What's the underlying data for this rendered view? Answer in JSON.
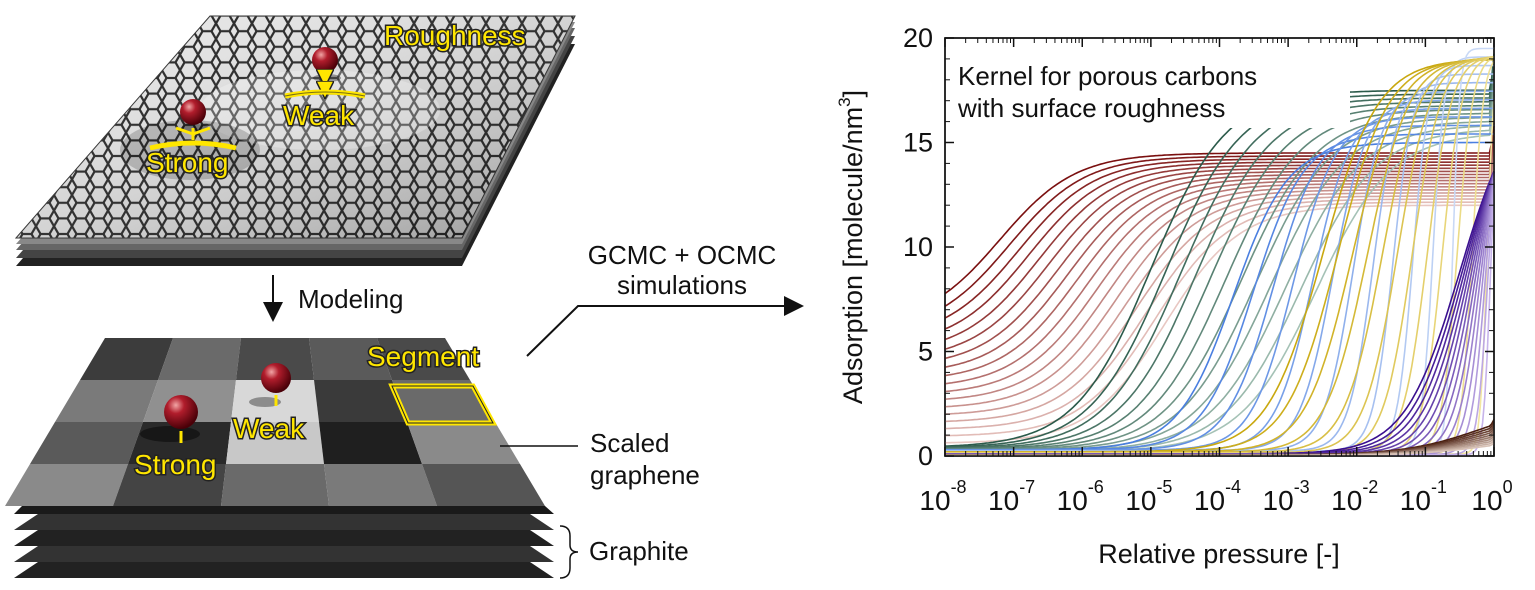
{
  "left_diagram": {
    "top_labels": {
      "roughness": "Roughness",
      "weak": "Weak",
      "strong": "Strong"
    },
    "arrow_label": "Modeling",
    "bottom_labels": {
      "segment": "Segment",
      "weak": "Weak",
      "strong": "Strong",
      "scaled_graphene_line1": "Scaled",
      "scaled_graphene_line2": "graphene",
      "graphite": "Graphite"
    },
    "middle_label_line1": "GCMC + OCMC",
    "middle_label_line2": "simulations"
  },
  "colors": {
    "highlight_yellow": "#ffe600",
    "red_family": "#7a1010",
    "green_family": "#2e5e4e",
    "blue_family": "#5b8ee8",
    "yellow_family": "#d4b21a",
    "purple_family": "#4b1aa6",
    "brown_family": "#5a2a1a"
  },
  "chart_data": {
    "type": "line",
    "annotation_line1": "Kernel for porous carbons",
    "annotation_line2": "with surface roughness",
    "xlabel": "Relative pressure [-]",
    "ylabel": "Adsorption [molecule/nm",
    "ylabel_sup": "3",
    "ylabel_close": "]",
    "x_scale": "log",
    "xlim": [
      1e-08,
      1
    ],
    "ylim": [
      0,
      20
    ],
    "x_tick_bases": [
      "10",
      "10",
      "10",
      "10",
      "10",
      "10",
      "10",
      "10",
      "10"
    ],
    "x_tick_exps": [
      "-8",
      "-7",
      "-6",
      "-5",
      "-4",
      "-3",
      "-2",
      "-1",
      "0"
    ],
    "x_tick_values": [
      -8,
      -7,
      -6,
      -5,
      -4,
      -3,
      -2,
      -1,
      0
    ],
    "y_ticks": [
      "0",
      "5",
      "10",
      "15",
      "20"
    ],
    "y_tick_values": [
      0,
      5,
      10,
      15,
      20
    ],
    "families": [
      {
        "name": "red",
        "count": 18,
        "color_start": "#7a0f0f",
        "color_end": "#e8c7c2",
        "low_start": 6.2,
        "low_end": 0.6,
        "mid_start": -7.2,
        "mid_end": -4.8,
        "plateau_start": 14.5,
        "plateau_end": 12.0,
        "step": false
      },
      {
        "name": "green",
        "count": 12,
        "color_start": "#2b5a4a",
        "color_end": "#a5c2b6",
        "low_start": 0.4,
        "low_end": 0.2,
        "mid_start": -5.0,
        "mid_end": -2.6,
        "plateau_start": 17.5,
        "plateau_end": 15.5,
        "step": false
      },
      {
        "name": "blue",
        "count": 12,
        "color_start": "#4a7fe0",
        "color_end": "#c9d9f6",
        "low_start": 0.3,
        "low_end": 0.2,
        "mid_start": -3.8,
        "mid_end": -0.6,
        "plateau_start": 15.0,
        "plateau_end": 19.5,
        "step": true
      },
      {
        "name": "yellow",
        "count": 12,
        "color_start": "#c9a80f",
        "color_end": "#f3e6a0",
        "low_start": 0.2,
        "low_end": 0.1,
        "mid_start": -2.5,
        "mid_end": -0.1,
        "plateau_start": 19.0,
        "plateau_end": 19.3,
        "step": true
      },
      {
        "name": "purple",
        "count": 14,
        "color_start": "#3a0f8f",
        "color_end": "#c7b4ea",
        "low_start": 0.1,
        "low_end": 0.05,
        "mid_start": -0.5,
        "mid_end": -0.05,
        "plateau_start": 17.5,
        "plateau_end": 17.5,
        "step": true
      },
      {
        "name": "brown",
        "count": 10,
        "color_start": "#4a1f10",
        "color_end": "#d8c2b6",
        "low_start": 0.05,
        "low_end": 0.02,
        "mid_start": -0.2,
        "mid_end": -0.02,
        "plateau_start": 2.5,
        "plateau_end": 1.0,
        "step": false
      }
    ]
  }
}
